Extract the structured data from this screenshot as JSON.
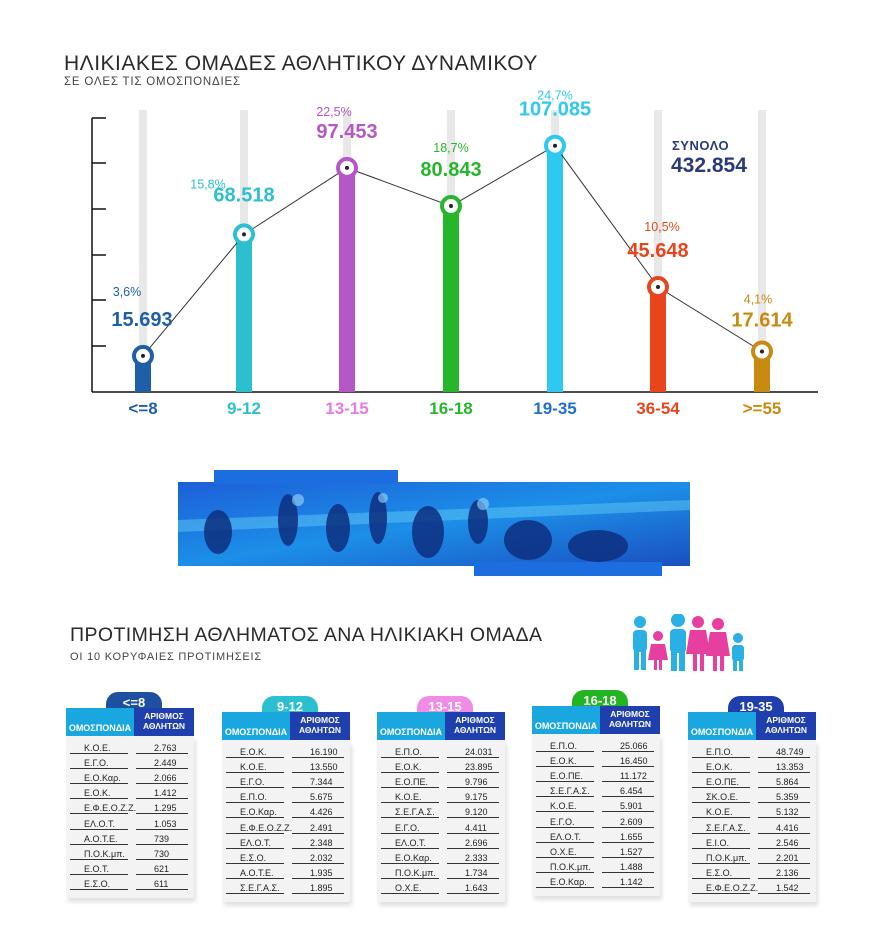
{
  "header": {
    "title": "ΗΛΙΚΙΑΚΕΣ ΟΜΑΔΕΣ ΑΘΛΗΤΙΚΟΥ ΔΥΝΑΜΙΚΟΥ",
    "subtitle": "ΣΕ ΟΛΕΣ ΤΙΣ ΟΜΟΣΠΟΝΔΙΕΣ"
  },
  "total": {
    "label": "ΣΥΝΟΛΟ",
    "value": "432.854"
  },
  "chart_data": {
    "type": "line",
    "title": "ΗΛΙΚΙΑΚΕΣ ΟΜΑΔΕΣ ΑΘΛΗΤΙΚΟΥ ΔΥΝΑΜΙΚΟΥ",
    "subtitle": "ΣΕ ΟΛΕΣ ΤΙΣ ΟΜΟΣΠΟΝΔΙΕΣ",
    "xlabel": "",
    "ylabel": "",
    "ylim": [
      0,
      120000
    ],
    "grid": false,
    "categories": [
      "<=8",
      "9-12",
      "13-15",
      "16-18",
      "19-35",
      "36-54",
      ">=55"
    ],
    "values": [
      15693,
      68518,
      97453,
      80843,
      107085,
      45648,
      17614
    ],
    "value_labels": [
      "15.693",
      "68.518",
      "97.453",
      "80.843",
      "107.085",
      "45.648",
      "17.614"
    ],
    "percent_labels": [
      "3,6%",
      "15,8%",
      "22,5%",
      "18,7%",
      "24,7%",
      "10,5%",
      "4,1%"
    ],
    "colors": [
      "#1f5fa8",
      "#2bbfcf",
      "#b657c8",
      "#26b52b",
      "#2fc8f0",
      "#e8451d",
      "#c98a12"
    ],
    "label_colors": [
      "#1f5fa8",
      "#2bbfcf",
      "#b657c8",
      "#26b52b",
      "#2fc8f0",
      "#e8451d",
      "#c98a12"
    ],
    "category_colors": [
      "#1f5fa8",
      "#2bbfcf",
      "#e87ae0",
      "#26b52b",
      "#1f6fd0",
      "#e8451d",
      "#c98a12"
    ]
  },
  "section2": {
    "title": "ΠΡΟΤΙΜΗΣΗ ΑΘΛΗΜΑΤΟΣ ΑΝΑ ΗΛΙΚΙΑΚΗ ΟΜΑΔΑ",
    "subtitle": "ΟΙ 10 ΚΟΡΥΦΑΙΕΣ ΠΡΟΤΙΜΗΣΕΙΣ",
    "col1": "ΟΜΟΣΠΟΝΔΙΑ",
    "col2": "ΑΡΙΘΜΟΣ ΑΘΛΗΤΩΝ"
  },
  "tables": [
    {
      "label": "<=8",
      "color": "#1f4fa0",
      "rows": [
        [
          "Κ.Ο.Ε.",
          "2.763"
        ],
        [
          "Ε.Γ.Ο.",
          "2.449"
        ],
        [
          "Ε.Ο.Καρ.",
          "2.066"
        ],
        [
          "Ε.Ο.Κ.",
          "1.412"
        ],
        [
          "Ε.Φ.Ε.Ο.Ζ.Ζ.",
          "1.295"
        ],
        [
          "ΕΛ.Ο.Τ.",
          "1.053"
        ],
        [
          "Α.Ο.Τ.Ε.",
          "739"
        ],
        [
          "Π.Ο.Κ.μπ.",
          "730"
        ],
        [
          "Ε.Ο.Τ.",
          "621"
        ],
        [
          "Ε.Σ.Ο.",
          "611"
        ]
      ]
    },
    {
      "label": "9-12",
      "color": "#2bbfcf",
      "rows": [
        [
          "Ε.Ο.Κ.",
          "16.190"
        ],
        [
          "Κ.Ο.Ε.",
          "13.550"
        ],
        [
          "Ε.Γ.Ο.",
          "7.344"
        ],
        [
          "Ε.Π.Ο.",
          "5.675"
        ],
        [
          "Ε.Ο.Καρ.",
          "4.426"
        ],
        [
          "Ε.Φ.Ε.Ο.Ζ.Ζ.",
          "2.491"
        ],
        [
          "ΕΛ.Ο.Τ.",
          "2.348"
        ],
        [
          "Ε.Σ.Ο.",
          "2.032"
        ],
        [
          "Α.Ο.Τ.Ε.",
          "1.935"
        ],
        [
          "Σ.Ε.Γ.Α.Σ.",
          "1.895"
        ]
      ]
    },
    {
      "label": "13-15",
      "color": "#ef8ce6",
      "rows": [
        [
          "Ε.Π.Ο.",
          "24.031"
        ],
        [
          "Ε.Ο.Κ.",
          "23.895"
        ],
        [
          "Ε.Ο.ΠΕ.",
          "9.796"
        ],
        [
          "Κ.Ο.Ε.",
          "9.175"
        ],
        [
          "Σ.Ε.Γ.Α.Σ.",
          "9.120"
        ],
        [
          "Ε.Γ.Ο.",
          "4.411"
        ],
        [
          "ΕΛ.Ο.Τ.",
          "2.696"
        ],
        [
          "Ε.Ο.Καρ.",
          "2.333"
        ],
        [
          "Π.Ο.Κ.μπ.",
          "1.734"
        ],
        [
          "Ο.Χ.Ε.",
          "1.643"
        ]
      ]
    },
    {
      "label": "16-18",
      "color": "#22b522",
      "rows": [
        [
          "Ε.Π.Ο.",
          "25.066"
        ],
        [
          "Ε.Ο.Κ.",
          "16.450"
        ],
        [
          "Ε.Ο.ΠΕ.",
          "11.172"
        ],
        [
          "Σ.Ε.Γ.Α.Σ.",
          "6.454"
        ],
        [
          "Κ.Ο.Ε.",
          "5.901"
        ],
        [
          "Ε.Γ.Ο.",
          "2.609"
        ],
        [
          "ΕΛ.Ο.Τ.",
          "1.655"
        ],
        [
          "Ο.Χ.Ε.",
          "1.527"
        ],
        [
          "Π.Ο.Κ.μπ.",
          "1.488"
        ],
        [
          "Ε.Ο.Καρ.",
          "1.142"
        ]
      ]
    },
    {
      "label": "19-35",
      "color": "#1f3fae",
      "rows": [
        [
          "Ε.Π.Ο.",
          "48.749"
        ],
        [
          "Ε.Ο.Κ.",
          "13.353"
        ],
        [
          "Ε.Ο.ΠΕ.",
          "5.864"
        ],
        [
          "ΣΚ.Ο.Ε.",
          "5.359"
        ],
        [
          "Κ.Ο.Ε.",
          "5.132"
        ],
        [
          "Σ.Ε.Γ.Α.Σ.",
          "4.416"
        ],
        [
          "Ε.Ι.Ο.",
          "2.546"
        ],
        [
          "Π.Ο.Κ.μπ.",
          "2.201"
        ],
        [
          "Ε.Σ.Ο.",
          "2.136"
        ],
        [
          "Ε.Φ.Ε.Ο.Ζ.Ζ.",
          "1.542"
        ]
      ]
    }
  ]
}
